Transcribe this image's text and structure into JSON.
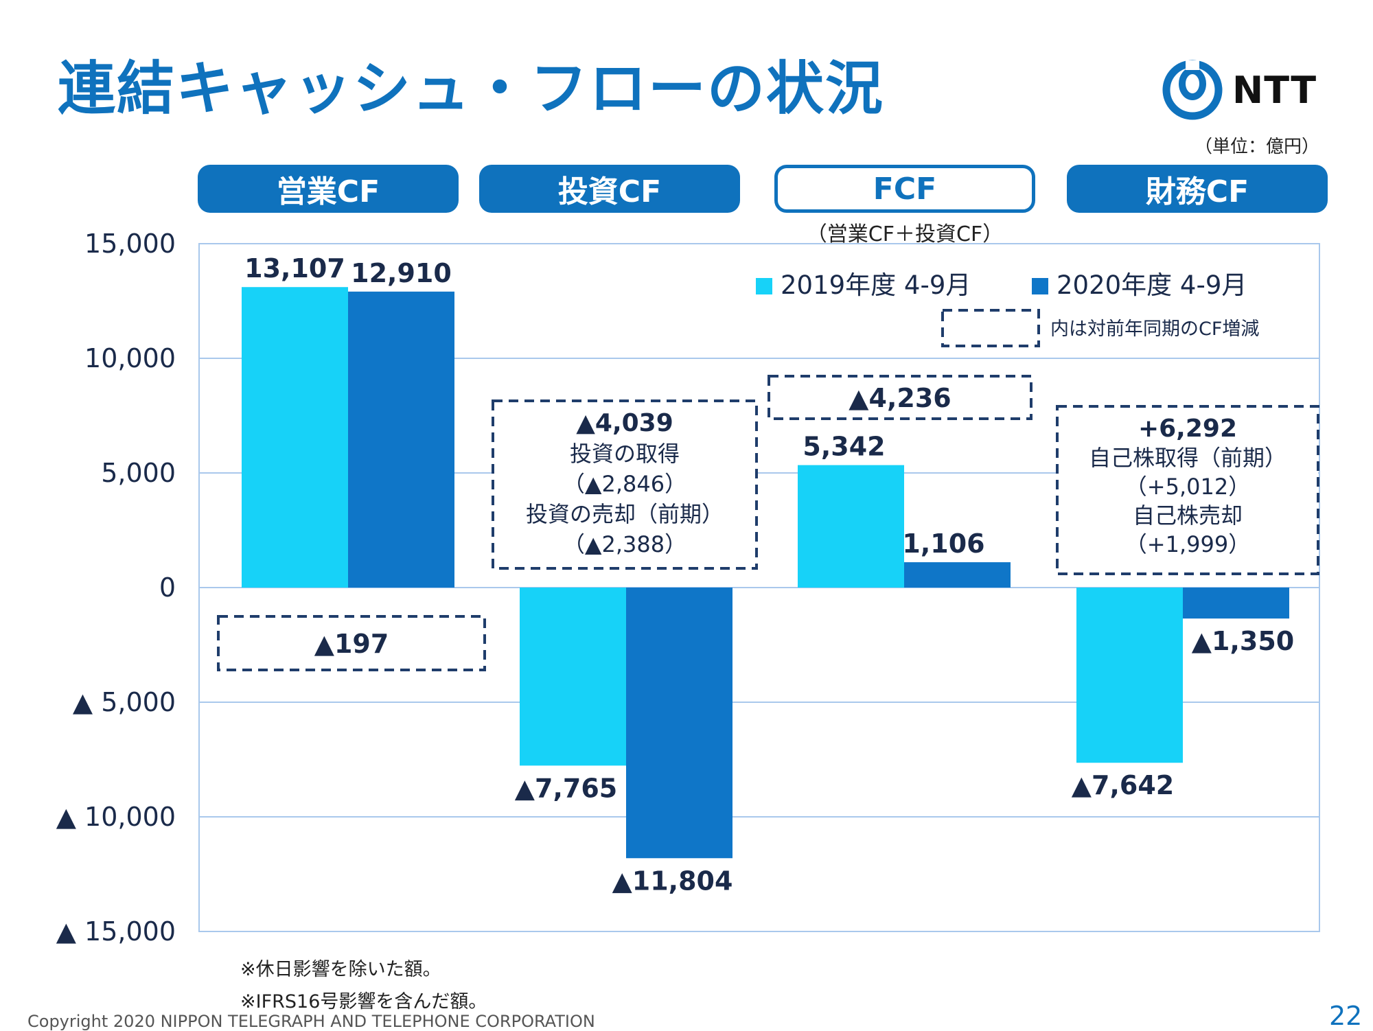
{
  "page": {
    "title": "連結キャッシュ・フローの状況",
    "unit_note": "（単位：億円）",
    "logo_text": "NTT",
    "footnotes": [
      "※休日影響を除いた額。",
      "※IFRS16号影響を含んだ額。"
    ],
    "copyright": "Copyright 2020 NIPPON TELEGRAPH AND TELEPHONE CORPORATION",
    "page_number": "22"
  },
  "headers": [
    {
      "label": "営業CF",
      "style": "filled"
    },
    {
      "label": "投資CF",
      "style": "filled"
    },
    {
      "label": "FCF",
      "style": "outline",
      "sublabel": "（営業CF＋投資CF）"
    },
    {
      "label": "財務CF",
      "style": "filled"
    }
  ],
  "legend_note": "内は対前年同期のCF増減",
  "chart_data": {
    "type": "bar",
    "categories": [
      "営業CF",
      "投資CF",
      "FCF",
      "財務CF"
    ],
    "series": [
      {
        "name": "2019年度 4-9月",
        "color": "#17d2f8",
        "values": [
          13107,
          -7765,
          5342,
          -7642
        ],
        "labels": [
          "13,107",
          "▲7,765",
          "5,342",
          "▲7,642"
        ]
      },
      {
        "name": "2020年度 4-9月",
        "color": "#0f76c8",
        "values": [
          12910,
          -11804,
          1106,
          -1350
        ],
        "labels": [
          "12,910",
          "▲11,804",
          "1,106",
          "▲1,350"
        ]
      }
    ],
    "ylim": [
      -15000,
      15000
    ],
    "yticks": [
      15000,
      10000,
      5000,
      0,
      -5000,
      -10000,
      -15000
    ],
    "ytick_labels": [
      "15,000",
      "10,000",
      "5,000",
      "0",
      "▲ 5,000",
      "▲ 10,000",
      "▲ 15,000"
    ],
    "grid": true,
    "legend_position": "top-right",
    "annotations": [
      {
        "category": "営業CF",
        "lines": [
          "▲197"
        ]
      },
      {
        "category": "投資CF",
        "lines": [
          "▲4,039",
          "投資の取得",
          "（▲2,846）",
          "投資の売却（前期）",
          "（▲2,388）"
        ]
      },
      {
        "category": "FCF",
        "lines": [
          "▲4,236"
        ]
      },
      {
        "category": "財務CF",
        "lines": [
          "+6,292",
          "自己株取得（前期）",
          "（+5,012）",
          "自己株売却",
          "（+1,999）"
        ]
      }
    ]
  }
}
